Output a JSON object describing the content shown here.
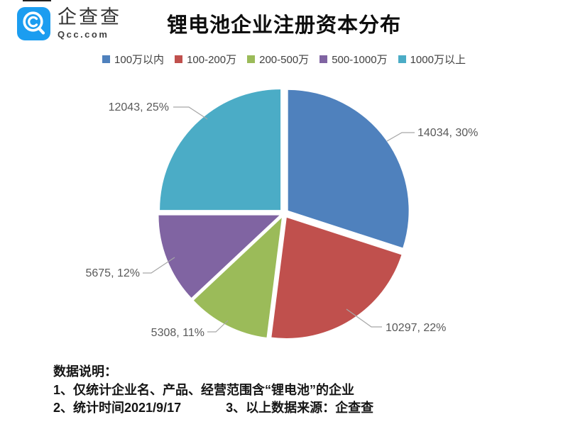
{
  "brand": {
    "name": "企查查",
    "domain": "Qcc.com"
  },
  "title": "锂电池企业注册资本分布",
  "chart_data": {
    "type": "pie",
    "title": "锂电池企业注册资本分布",
    "legend_position": "top",
    "start_angle_deg": 0,
    "direction": "clockwise",
    "exploded": true,
    "slices": [
      {
        "legend": "100万以内",
        "value": 14034,
        "pct": 30,
        "color": "#4F81BD",
        "label": "14034, 30%"
      },
      {
        "legend": "100-200万",
        "value": 10297,
        "pct": 22,
        "color": "#C0504D",
        "label": "10297, 22%"
      },
      {
        "legend": "200-500万",
        "value": 5308,
        "pct": 11,
        "color": "#9BBB59",
        "label": "5308, 11%"
      },
      {
        "legend": "500-1000万",
        "value": 5675,
        "pct": 12,
        "color": "#8064A2",
        "label": "5675, 12%"
      },
      {
        "legend": "1000万以上",
        "value": 12043,
        "pct": 25,
        "color": "#4BACC6",
        "label": "12043, 25%"
      }
    ]
  },
  "footer": {
    "heading": "数据说明：",
    "line1": "1、仅统计企业名、产品、经营范围含“锂电池”的企业",
    "line2a": "2、统计时间2021/9/17",
    "line2b": "3、以上数据来源：企查查"
  }
}
